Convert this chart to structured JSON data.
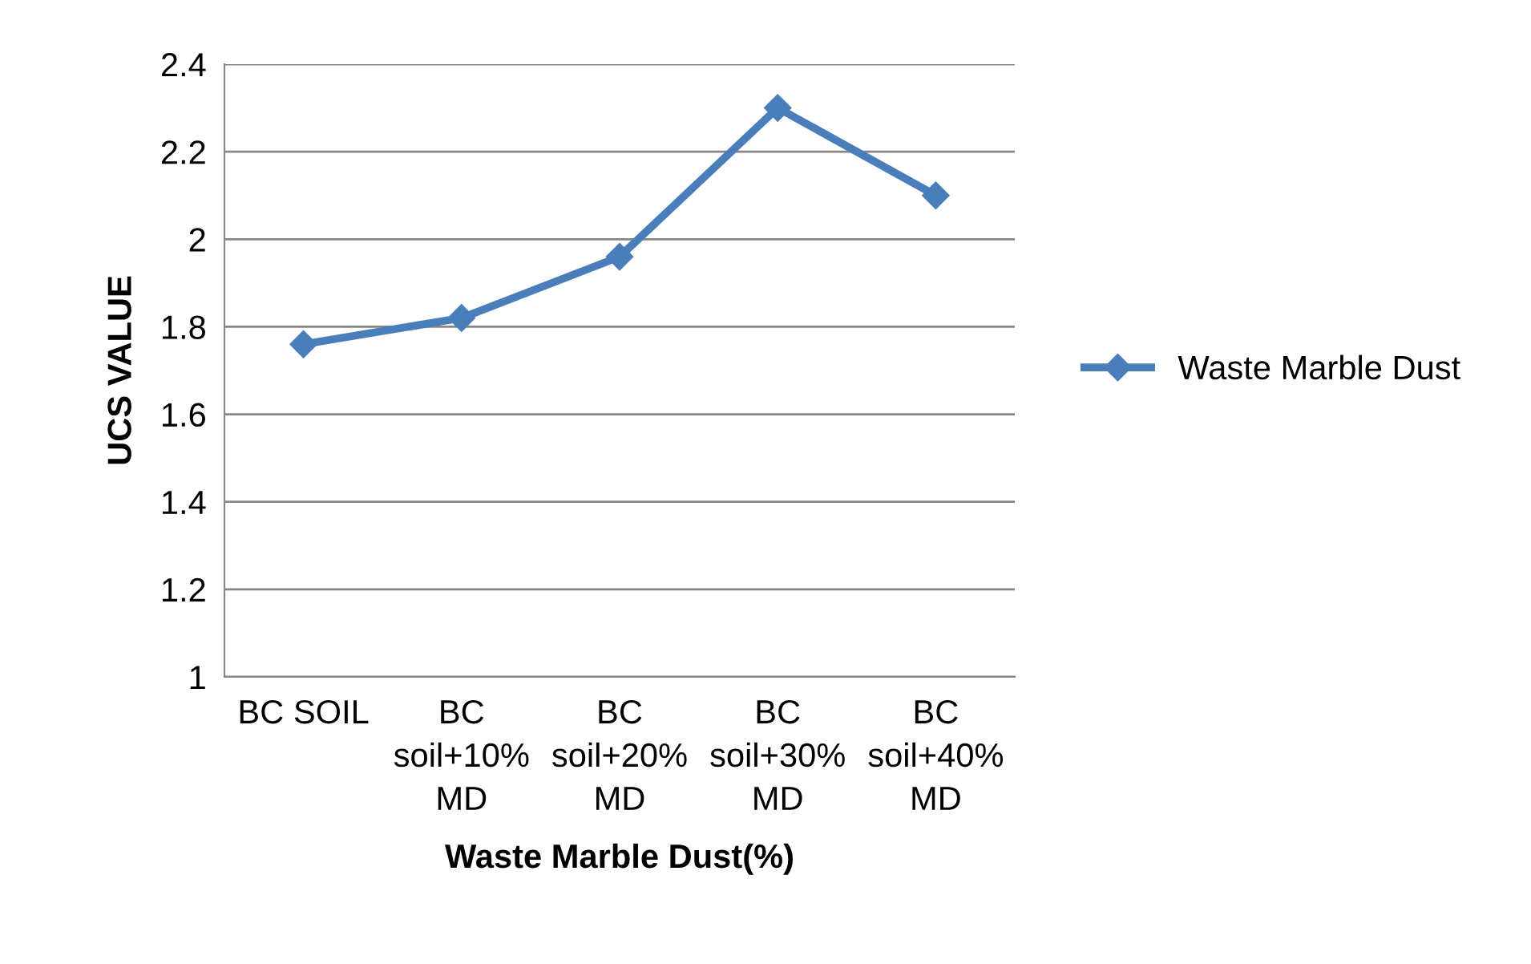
{
  "chart_data": {
    "type": "line",
    "xlabel": "Waste Marble Dust(%)",
    "ylabel": "UCS VALUE",
    "categories": [
      "BC SOIL",
      "BC\nsoil+10%\nMD",
      "BC\nsoil+20%\nMD",
      "BC\nsoil+30%\nMD",
      "BC\nsoil+40%\nMD"
    ],
    "series": [
      {
        "name": "Waste Marble Dust",
        "color": "#4a7ebb",
        "values": [
          1.76,
          1.82,
          1.96,
          2.3,
          2.1
        ]
      }
    ],
    "ylim": [
      1,
      2.4
    ],
    "yticks": [
      1,
      1.2,
      1.4,
      1.6,
      1.8,
      2,
      2.2,
      2.4
    ],
    "grid": "y",
    "legend": "right",
    "marker": "diamond",
    "line_style": "solid"
  }
}
